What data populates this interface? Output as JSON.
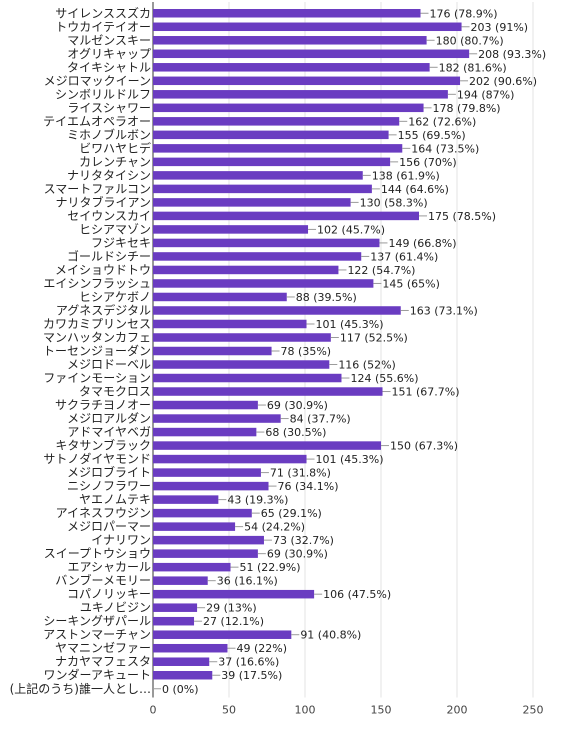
{
  "chart_data": {
    "type": "bar",
    "orientation": "horizontal",
    "categories": [
      "サイレンススズカ",
      "トウカイテイオー",
      "マルゼンスキー",
      "オグリキャップ",
      "タイキシャトル",
      "メジロマックイーン",
      "シンボリルドルフ",
      "ライスシャワー",
      "テイエムオペラオー",
      "ミホノブルボン",
      "ビワハヤヒデ",
      "カレンチャン",
      "ナリタタイシン",
      "スマートファルコン",
      "ナリタブライアン",
      "セイウンスカイ",
      "ヒシアマゾン",
      "フジキセキ",
      "ゴールドシチー",
      "メイショウドトウ",
      "エイシンフラッシュ",
      "ヒシアケボノ",
      "アグネスデジタル",
      "カワカミプリンセス",
      "マンハッタンカフェ",
      "トーセンジョーダン",
      "メジロドーベル",
      "ファインモーション",
      "タマモクロス",
      "サクラチヨノオー",
      "メジロアルダン",
      "アドマイヤベガ",
      "キタサンブラック",
      "サトノダイヤモンド",
      "メジロブライト",
      "ニシノフラワー",
      "ヤエノムテキ",
      "アイネスフウジン",
      "メジロパーマー",
      "イナリワン",
      "スイープトウショウ",
      "エアシャカール",
      "バンブーメモリー",
      "コパノリッキー",
      "ユキノビジン",
      "シーキングザパール",
      "アストンマーチャン",
      "ヤマニンゼファー",
      "ナカヤマフェスタ",
      "ワンダーアキュート",
      "(上記のうち)誰一人とし…"
    ],
    "values": [
      176,
      203,
      180,
      208,
      182,
      202,
      194,
      178,
      162,
      155,
      164,
      156,
      138,
      144,
      130,
      175,
      102,
      149,
      137,
      122,
      145,
      88,
      163,
      101,
      117,
      78,
      116,
      124,
      151,
      69,
      84,
      68,
      150,
      101,
      71,
      76,
      43,
      65,
      54,
      73,
      69,
      51,
      36,
      106,
      29,
      27,
      91,
      49,
      37,
      39,
      0
    ],
    "value_labels": [
      "176 (78.9%)",
      "203 (91%)",
      "180 (80.7%)",
      "208 (93.3%)",
      "182 (81.6%)",
      "202 (90.6%)",
      "194 (87%)",
      "178 (79.8%)",
      "162 (72.6%)",
      "155 (69.5%)",
      "164 (73.5%)",
      "156 (70%)",
      "138 (61.9%)",
      "144 (64.6%)",
      "130 (58.3%)",
      "175 (78.5%)",
      "102 (45.7%)",
      "149 (66.8%)",
      "137 (61.4%)",
      "122 (54.7%)",
      "145 (65%)",
      "88 (39.5%)",
      "163 (73.1%)",
      "101 (45.3%)",
      "117 (52.5%)",
      "78 (35%)",
      "116 (52%)",
      "124 (55.6%)",
      "151 (67.7%)",
      "69 (30.9%)",
      "84 (37.7%)",
      "68 (30.5%)",
      "150 (67.3%)",
      "101 (45.3%)",
      "71 (31.8%)",
      "76 (34.1%)",
      "43 (19.3%)",
      "65 (29.1%)",
      "54 (24.2%)",
      "73 (32.7%)",
      "69 (30.9%)",
      "51 (22.9%)",
      "36 (16.1%)",
      "106 (47.5%)",
      "29 (13%)",
      "27 (12.1%)",
      "91 (40.8%)",
      "49 (22%)",
      "37 (16.6%)",
      "39 (17.5%)",
      "0 (0%)"
    ],
    "xlim": [
      0,
      250
    ],
    "x_ticks": [
      "0",
      "50",
      "100",
      "150",
      "200",
      "250"
    ],
    "grid": true,
    "bar_color": "#6a3cc1",
    "grid_color": "#e3e3e3",
    "title": "",
    "xlabel": "",
    "ylabel": ""
  }
}
